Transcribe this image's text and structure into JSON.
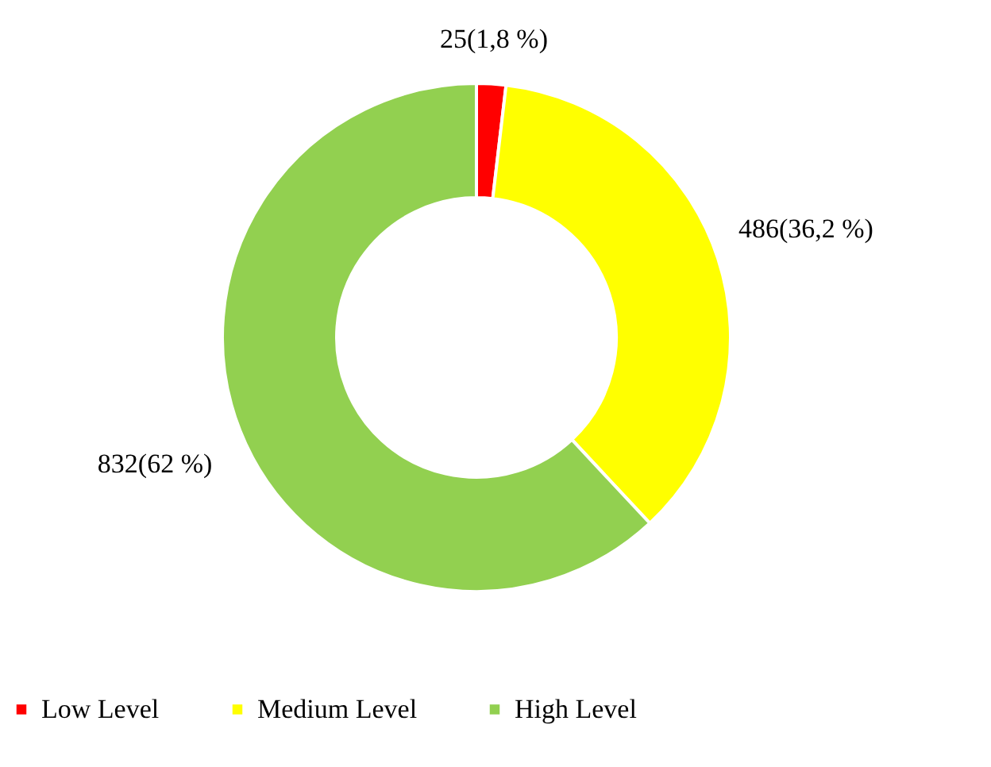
{
  "chart_data": {
    "type": "donut",
    "categories": [
      "Low Level",
      "Medium Level",
      "High Level"
    ],
    "values": [
      25,
      486,
      832
    ],
    "colors": [
      "#ff0000",
      "#ffff00",
      "#92d050"
    ],
    "value_labels": [
      "25(1,8 %)",
      "486(36,2 %)",
      "832(62 %)"
    ],
    "legend": "bottom"
  }
}
